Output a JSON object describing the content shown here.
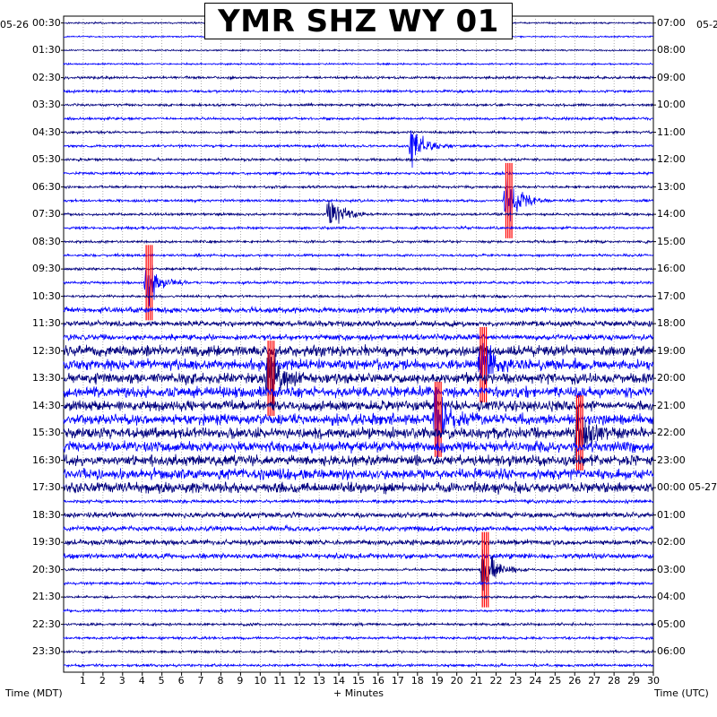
{
  "chart_data": {
    "type": "line",
    "title": "YMR SHZ WY 01",
    "xlabel": "+ Minutes",
    "ylabel_left": "Time (MDT)",
    "ylabel_right": "Time (UTC)",
    "date_left_start": "05-26",
    "date_right_start": "05-2",
    "x_ticks": [
      "1",
      "2",
      "3",
      "4",
      "5",
      "6",
      "7",
      "8",
      "9",
      "10",
      "11",
      "12",
      "13",
      "14",
      "15",
      "16",
      "17",
      "18",
      "19",
      "20",
      "21",
      "22",
      "23",
      "24",
      "25",
      "26",
      "27",
      "28",
      "29",
      "30"
    ],
    "xlim": [
      0,
      30
    ],
    "left_labels": [
      "00:30",
      "01:30",
      "02:30",
      "03:30",
      "04:30",
      "05:30",
      "06:30",
      "07:30",
      "08:30",
      "09:30",
      "10:30",
      "11:30",
      "12:30",
      "13:30",
      "14:30",
      "15:30",
      "16:30",
      "17:30",
      "18:30",
      "19:30",
      "20:30",
      "21:30",
      "22:30",
      "23:30"
    ],
    "right_labels": [
      "07:00",
      "08:00",
      "09:00",
      "10:00",
      "11:00",
      "12:00",
      "13:00",
      "14:00",
      "15:00",
      "16:00",
      "17:00",
      "18:00",
      "19:00",
      "20:00",
      "21:00",
      "22:00",
      "23:00",
      "00:00 05-27",
      "01:00",
      "02:00",
      "03:00",
      "04:00",
      "05:00",
      "06:00"
    ],
    "trace_count": 48,
    "trace_colors": [
      "#00007f",
      "#0000ff"
    ],
    "clip_color": "#ff0000",
    "grid": true,
    "events": [
      {
        "trace": 9,
        "minute": 17.7,
        "amplitude": "large"
      },
      {
        "trace": 13,
        "minute": 22.5,
        "amplitude": "clipped"
      },
      {
        "trace": 14,
        "minute": 13.5,
        "amplitude": "large"
      },
      {
        "trace": 19,
        "minute": 4.2,
        "amplitude": "clipped"
      },
      {
        "trace": 25,
        "minute": 21.2,
        "amplitude": "clipped"
      },
      {
        "trace": 26,
        "minute": 10.4,
        "amplitude": "clipped"
      },
      {
        "trace": 29,
        "minute": 18.9,
        "amplitude": "clipped"
      },
      {
        "trace": 30,
        "minute": 26.1,
        "amplitude": "clipped"
      },
      {
        "trace": 40,
        "minute": 21.3,
        "amplitude": "clipped"
      }
    ]
  }
}
